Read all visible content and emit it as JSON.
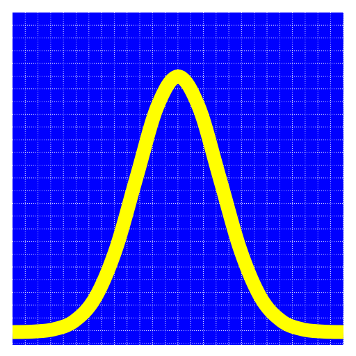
{
  "chart_data": {
    "type": "line",
    "title": "",
    "xlabel": "",
    "ylabel": "",
    "xlim": [
      -4,
      4
    ],
    "ylim": [
      -0.05,
      1.25
    ],
    "grid": true,
    "legend": "none",
    "x": [
      -4.0,
      -3.5,
      -3.0,
      -2.5,
      -2.0,
      -1.5,
      -1.0,
      -0.5,
      0.0,
      0.5,
      1.0,
      1.5,
      2.0,
      2.5,
      3.0,
      3.5,
      4.0
    ],
    "series": [
      {
        "values": [
          0.0,
          0.002,
          0.011,
          0.044,
          0.135,
          0.325,
          0.607,
          0.882,
          1.0,
          0.882,
          0.607,
          0.325,
          0.135,
          0.044,
          0.011,
          0.002,
          0.0
        ]
      }
    ],
    "colors": {
      "background": "#0000ff",
      "grid": "#ffffff",
      "line": "#ffff00"
    }
  }
}
